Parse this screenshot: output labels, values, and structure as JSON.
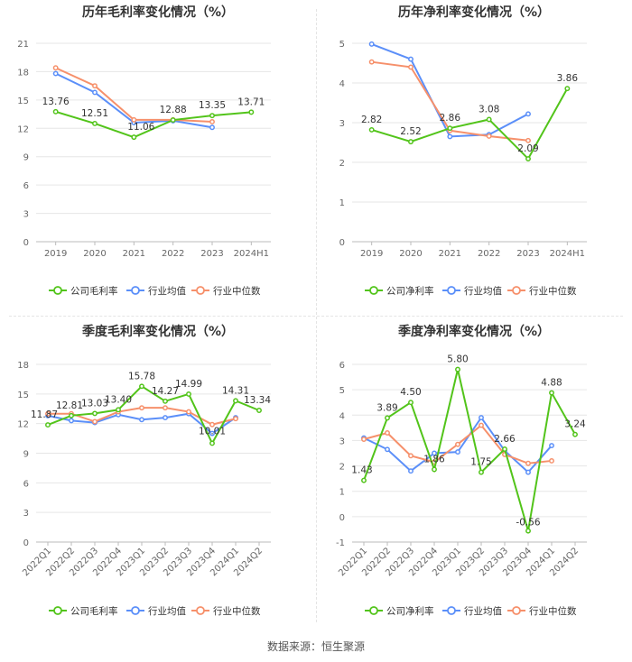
{
  "source": "数据来源：恒生聚源",
  "colors": {
    "company": "#52c41a",
    "industry_avg": "#5b8ff9",
    "industry_median": "#f6906b",
    "grid": "#e6e6e6",
    "axis_text": "#666666",
    "title": "#333333"
  },
  "chart_data": [
    {
      "type": "line",
      "title": "历年毛利率变化情况（%）",
      "categories": [
        "2019",
        "2020",
        "2021",
        "2022",
        "2023",
        "2024H1"
      ],
      "ylim": [
        0,
        21
      ],
      "yticks": [
        "0",
        "3",
        "6",
        "9",
        "12",
        "15",
        "18",
        "21"
      ],
      "rotate_labels": false,
      "series": [
        {
          "name": "公司毛利率",
          "key": "company",
          "values": [
            13.76,
            12.51,
            11.06,
            12.88,
            13.35,
            13.71
          ],
          "labels": [
            "13.76",
            "12.51",
            "11.06",
            "12.88",
            "13.35",
            "13.71"
          ]
        },
        {
          "name": "行业均值",
          "key": "industry_avg",
          "values": [
            17.8,
            15.8,
            12.6,
            12.8,
            12.1,
            null
          ]
        },
        {
          "name": "行业中位数",
          "key": "industry_median",
          "values": [
            18.4,
            16.5,
            12.9,
            12.9,
            12.7,
            null
          ]
        }
      ],
      "grid": true,
      "legend": "bottom"
    },
    {
      "type": "line",
      "title": "历年净利率变化情况（%）",
      "categories": [
        "2019",
        "2020",
        "2021",
        "2022",
        "2023",
        "2024H1"
      ],
      "ylim": [
        0,
        5
      ],
      "yticks": [
        "0",
        "1",
        "2",
        "3",
        "4",
        "5"
      ],
      "rotate_labels": false,
      "series": [
        {
          "name": "公司净利率",
          "key": "company",
          "values": [
            2.82,
            2.52,
            2.86,
            3.08,
            2.09,
            3.86
          ],
          "labels": [
            "2.82",
            "2.52",
            "2.86",
            "3.08",
            "2.09",
            "3.86"
          ]
        },
        {
          "name": "行业均值",
          "key": "industry_avg",
          "values": [
            4.98,
            4.6,
            2.65,
            2.7,
            3.22,
            null
          ]
        },
        {
          "name": "行业中位数",
          "key": "industry_median",
          "values": [
            4.53,
            4.4,
            2.8,
            2.66,
            2.55,
            null
          ]
        }
      ],
      "grid": true,
      "legend": "bottom"
    },
    {
      "type": "line",
      "title": "季度毛利率变化情况（%）",
      "categories": [
        "2022Q1",
        "2022Q2",
        "2022Q3",
        "2022Q4",
        "2023Q1",
        "2023Q2",
        "2023Q3",
        "2023Q4",
        "2024Q1",
        "2024Q2"
      ],
      "ylim": [
        0,
        18
      ],
      "yticks": [
        "0",
        "3",
        "6",
        "9",
        "12",
        "15",
        "18"
      ],
      "rotate_labels": true,
      "series": [
        {
          "name": "公司毛利率",
          "key": "company",
          "values": [
            11.87,
            12.81,
            13.03,
            13.4,
            15.78,
            14.27,
            14.99,
            10.01,
            14.31,
            13.34
          ],
          "labels": [
            "11.87",
            "12.81",
            "13.03",
            "13.40",
            "15.78",
            "14.27",
            "14.99",
            "10.01",
            "14.31",
            "13.34"
          ]
        },
        {
          "name": "行业均值",
          "key": "industry_avg",
          "values": [
            12.8,
            12.3,
            12.1,
            12.9,
            12.4,
            12.6,
            13.0,
            11.0,
            12.6,
            null
          ]
        },
        {
          "name": "行业中位数",
          "key": "industry_median",
          "values": [
            13.0,
            13.0,
            12.2,
            13.2,
            13.6,
            13.6,
            13.2,
            11.9,
            12.5,
            null
          ]
        }
      ],
      "grid": true,
      "legend": "bottom"
    },
    {
      "type": "line",
      "title": "季度净利率变化情况（%）",
      "categories": [
        "2022Q1",
        "2022Q2",
        "2022Q3",
        "2022Q4",
        "2023Q1",
        "2023Q2",
        "2023Q3",
        "2023Q4",
        "2024Q1",
        "2024Q2"
      ],
      "ylim": [
        -1,
        6
      ],
      "yticks": [
        "-1",
        "0",
        "1",
        "2",
        "3",
        "4",
        "5",
        "6"
      ],
      "rotate_labels": true,
      "series": [
        {
          "name": "公司净利率",
          "key": "company",
          "values": [
            1.43,
            3.89,
            4.5,
            1.86,
            5.8,
            1.75,
            2.66,
            -0.56,
            4.88,
            3.24
          ],
          "labels": [
            "1.43",
            "3.89",
            "4.50",
            "1.86",
            "5.80",
            "1.75",
            "2.66",
            "-0.56",
            "4.88",
            "3.24"
          ]
        },
        {
          "name": "行业均值",
          "key": "industry_avg",
          "values": [
            3.1,
            2.65,
            1.8,
            2.5,
            2.55,
            3.9,
            2.6,
            1.75,
            2.8,
            null
          ]
        },
        {
          "name": "行业中位数",
          "key": "industry_median",
          "values": [
            3.05,
            3.3,
            2.4,
            2.15,
            2.85,
            3.6,
            2.45,
            2.1,
            2.2,
            null
          ]
        }
      ],
      "grid": true,
      "legend": "bottom"
    }
  ]
}
